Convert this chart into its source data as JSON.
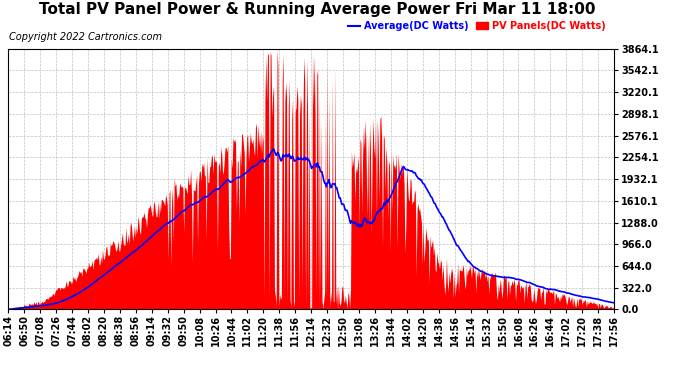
{
  "title": "Total PV Panel Power & Running Average Power Fri Mar 11 18:00",
  "copyright": "Copyright 2022 Cartronics.com",
  "legend_avg": "Average(DC Watts)",
  "legend_pv": "PV Panels(DC Watts)",
  "ymin": 0.0,
  "ymax": 3864.1,
  "yticks": [
    0.0,
    322.0,
    644.0,
    966.0,
    1288.0,
    1610.1,
    1932.1,
    2254.1,
    2576.1,
    2898.1,
    3220.1,
    3542.1,
    3864.1
  ],
  "xtick_labels": [
    "06:14",
    "06:50",
    "07:08",
    "07:26",
    "07:44",
    "08:02",
    "08:20",
    "08:38",
    "08:56",
    "09:14",
    "09:32",
    "09:50",
    "10:08",
    "10:26",
    "10:44",
    "11:02",
    "11:20",
    "11:38",
    "11:56",
    "12:14",
    "12:32",
    "12:50",
    "13:08",
    "13:26",
    "13:44",
    "14:02",
    "14:20",
    "14:38",
    "14:56",
    "15:14",
    "15:32",
    "15:50",
    "16:08",
    "16:26",
    "16:44",
    "17:02",
    "17:20",
    "17:38",
    "17:56"
  ],
  "bg_color": "#ffffff",
  "grid_color": "#bbbbbb",
  "pv_color": "#ff0000",
  "avg_color": "#0000ff",
  "title_fontsize": 11,
  "axis_fontsize": 7,
  "copyright_fontsize": 7
}
